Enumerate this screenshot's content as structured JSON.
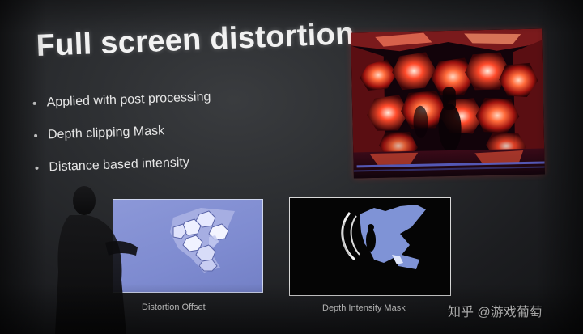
{
  "slide": {
    "title": "Full screen distortion",
    "bullets": [
      "Applied with post processing",
      "Depth clipping Mask",
      "Distance based intensity"
    ]
  },
  "figures": {
    "distortion_caption": "Distortion Offset",
    "depth_caption": "Depth Intensity Mask"
  },
  "watermark": {
    "text": "知乎 @游戏葡萄"
  },
  "colors": {
    "slide_bg": "#2b2d30",
    "title": "#f2f2f2",
    "bullet_text": "#e6e6e6",
    "render_glow": "#ff3b2a",
    "offset_panel": "#8c98d8",
    "mask_blue": "#7f93d6",
    "mask_bg": "#050505"
  }
}
